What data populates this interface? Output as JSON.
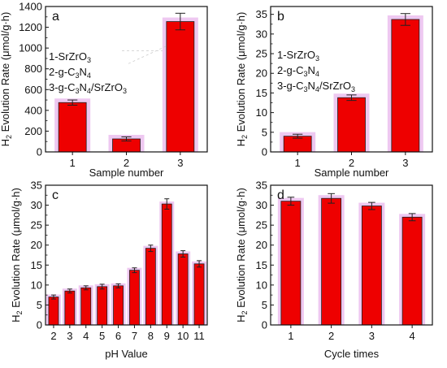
{
  "chart_data": [
    {
      "panel": "a",
      "type": "bar",
      "categories": [
        "1",
        "2",
        "3"
      ],
      "values": [
        475,
        125,
        1255
      ],
      "errors": [
        25,
        20,
        80
      ],
      "xlabel": "Sample number",
      "ylabel": {
        "a": "H",
        "b": "2",
        "c": " Evolution Rate (μmol/g·h)"
      },
      "ylim": [
        0,
        1400
      ],
      "yticks": [
        0,
        200,
        400,
        600,
        800,
        1000,
        1200,
        1400
      ],
      "legend": [
        {
          "a": "1-SrZrO",
          "b": "3",
          "c": ""
        },
        {
          "a": "2-g-C",
          "b": "3",
          "c": "N",
          "d": "4",
          "e": ""
        },
        {
          "a": "3-g-C",
          "b": "3",
          "c": "N",
          "d": "4",
          "e": "/SrZrO",
          "f": "3"
        }
      ]
    },
    {
      "panel": "b",
      "type": "bar",
      "categories": [
        "1",
        "2",
        "3"
      ],
      "values": [
        4.0,
        13.8,
        33.7
      ],
      "errors": [
        0.5,
        0.7,
        1.5
      ],
      "xlabel": "Sample number",
      "ylabel": {
        "a": "H",
        "b": "2",
        "c": " Evolution Rate (μmol/g·h)"
      },
      "ylim": [
        0,
        37
      ],
      "yticks": [
        0,
        5,
        10,
        15,
        20,
        25,
        30,
        35
      ],
      "legend": [
        {
          "a": "1-SrZrO",
          "b": "3",
          "c": ""
        },
        {
          "a": "2-g-C",
          "b": "3",
          "c": "N",
          "d": "4",
          "e": ""
        },
        {
          "a": "3-g-C",
          "b": "3",
          "c": "N",
          "d": "4",
          "e": "/SrZrO",
          "f": "3"
        }
      ]
    },
    {
      "panel": "c",
      "type": "bar",
      "categories": [
        "2",
        "3",
        "4",
        "5",
        "6",
        "7",
        "8",
        "9",
        "10",
        "11"
      ],
      "values": [
        7.0,
        8.5,
        9.3,
        9.6,
        9.8,
        13.7,
        19.2,
        30.3,
        17.8,
        15.3
      ],
      "errors": [
        0.5,
        0.5,
        0.5,
        0.6,
        0.5,
        0.6,
        0.8,
        1.3,
        0.8,
        0.8
      ],
      "xlabel": "pH Value",
      "ylabel": {
        "a": "H",
        "b": "2",
        "c": " Evolution Rate (μmol/g·h)"
      },
      "ylim": [
        0,
        35
      ],
      "yticks": [
        0,
        5,
        10,
        15,
        20,
        25,
        30,
        35
      ]
    },
    {
      "panel": "d",
      "type": "bar",
      "categories": [
        "1",
        "2",
        "3",
        "4"
      ],
      "values": [
        31.0,
        31.7,
        29.8,
        27.0
      ],
      "errors": [
        1.0,
        1.2,
        0.9,
        0.9
      ],
      "xlabel": "Cycle times",
      "ylabel": {
        "a": "H",
        "b": "2",
        "c": " Evolution Rate (μmol/g·h)"
      },
      "ylim": [
        0,
        35
      ],
      "yticks": [
        0,
        5,
        10,
        15,
        20,
        25,
        30,
        35
      ]
    }
  ],
  "colors": {
    "bar": "#ee0000",
    "glow": "#e8b6ec",
    "axis": "#111111"
  }
}
